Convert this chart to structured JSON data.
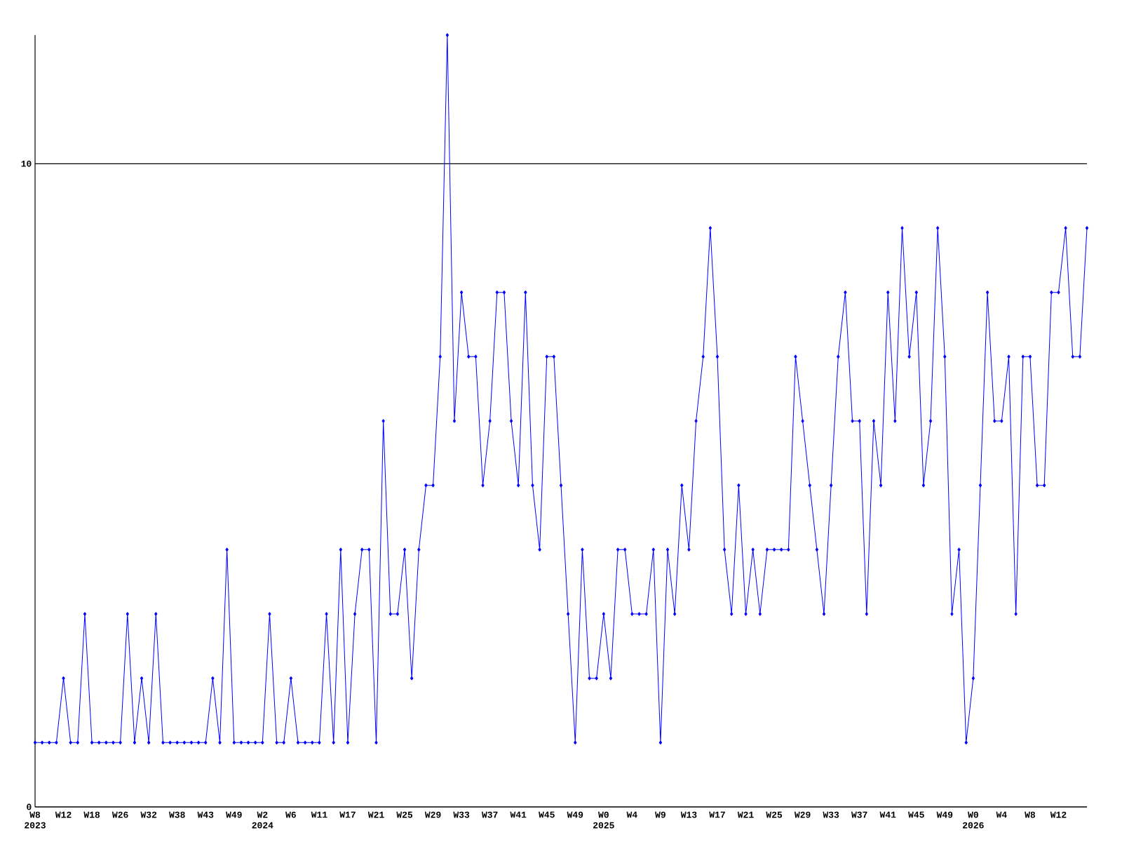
{
  "chart_data": {
    "type": "line",
    "categories": [
      "W8 2023",
      null,
      null,
      null,
      "W12",
      null,
      null,
      null,
      "W18",
      null,
      null,
      null,
      "W26",
      null,
      null,
      null,
      "W32",
      null,
      null,
      null,
      "W38",
      null,
      null,
      null,
      "W43",
      null,
      null,
      null,
      "W49",
      null,
      null,
      null,
      "W2 2024",
      null,
      null,
      null,
      "W6",
      null,
      null,
      null,
      "W11",
      null,
      null,
      null,
      "W17",
      null,
      null,
      null,
      "W21",
      null,
      null,
      null,
      "W25",
      null,
      null,
      null,
      "W29",
      null,
      null,
      null,
      "W33",
      null,
      null,
      null,
      "W37",
      null,
      null,
      null,
      "W41",
      null,
      null,
      null,
      "W45",
      null,
      null,
      null,
      "W49",
      null,
      null,
      null,
      "W0 2025",
      null,
      null,
      null,
      "W4",
      null,
      null,
      null,
      "W9",
      null,
      null,
      null,
      "W13",
      null,
      null,
      null,
      "W17",
      null,
      null,
      null,
      "W21",
      null,
      null,
      null,
      "W25",
      null,
      null,
      null,
      "W29",
      null,
      null,
      null,
      "W33",
      null,
      null,
      null,
      "W37",
      null,
      null,
      null,
      "W41",
      null,
      null,
      null,
      "W45",
      null,
      null,
      null,
      "W49",
      null,
      null,
      null,
      "W0 2026",
      null,
      null,
      null,
      "W4",
      null,
      null,
      null,
      "W8",
      null,
      null,
      null,
      "W12",
      null,
      null,
      null,
      null
    ],
    "values": [
      1,
      1,
      1,
      1,
      2,
      1,
      1,
      3,
      1,
      1,
      1,
      1,
      1,
      3,
      1,
      2,
      1,
      3,
      1,
      1,
      1,
      1,
      1,
      1,
      1,
      2,
      1,
      4,
      1,
      1,
      1,
      1,
      1,
      3,
      1,
      1,
      2,
      1,
      1,
      1,
      1,
      3,
      1,
      4,
      1,
      3,
      4,
      4,
      1,
      6,
      3,
      3,
      4,
      2,
      4,
      5,
      5,
      7,
      12,
      6,
      8,
      7,
      7,
      5,
      6,
      8,
      8,
      6,
      5,
      8,
      5,
      4,
      7,
      7,
      5,
      3,
      1,
      4,
      2,
      2,
      3,
      2,
      4,
      4,
      3,
      3,
      3,
      4,
      1,
      4,
      3,
      5,
      4,
      6,
      7,
      9,
      7,
      4,
      3,
      5,
      3,
      4,
      3,
      4,
      4,
      4,
      4,
      7,
      6,
      5,
      4,
      3,
      5,
      7,
      8,
      6,
      6,
      3,
      6,
      5,
      8,
      6,
      9,
      7,
      8,
      5,
      6,
      9,
      7,
      3,
      4,
      1,
      2,
      5,
      8,
      6,
      6,
      7,
      3,
      7,
      7,
      5,
      5,
      8,
      8,
      9,
      7,
      7,
      9
    ],
    "color": "#0000ff",
    "ylim": [
      0,
      12
    ],
    "yticks": [
      0,
      10
    ],
    "grid": "y",
    "marker": "diamond",
    "line_style": "solid"
  }
}
